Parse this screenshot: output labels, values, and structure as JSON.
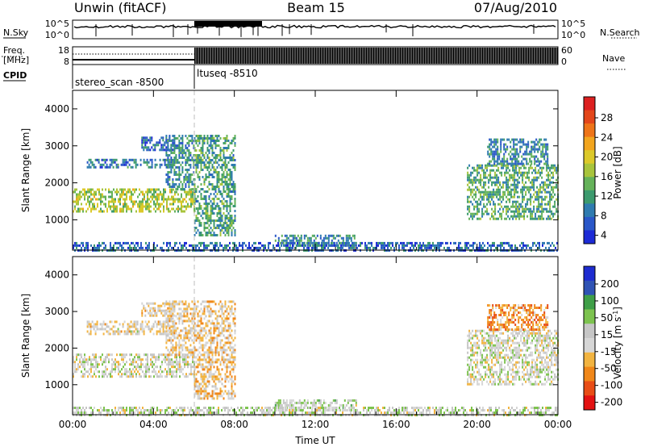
{
  "header": {
    "site": "Unwin (fitACF)",
    "beam": "Beam 15",
    "date": "07/Aug/2010"
  },
  "top_panels": {
    "nsky_label": "N.Sky",
    "nsky_ticks": [
      "10^5",
      "10^0"
    ],
    "nsearch_label": "N.Search",
    "nsearch_ticks": [
      "10^5",
      "10^0"
    ],
    "freq_label": [
      "Freq.",
      "[MHz]"
    ],
    "freq_ticks": [
      "18",
      "8"
    ],
    "nave_label": "Nave",
    "nave_ticks": [
      "60",
      "0"
    ],
    "cpid_label": "CPID",
    "cpid_segments": [
      {
        "name": "stereo_scan -8500",
        "start": 0,
        "end": 6.05
      },
      {
        "name": "ltuseq -8510",
        "start": 6.05,
        "end": 24
      }
    ]
  },
  "colorbars": {
    "power": {
      "title": "Power [dB]",
      "ticks": [
        "28",
        "24",
        "20",
        "16",
        "12",
        "8",
        "4"
      ],
      "colors": [
        "#1d2bd6",
        "#2a57c8",
        "#2f7bb0",
        "#3c9a6e",
        "#65b25a",
        "#a8c43c",
        "#dcc92a",
        "#f2a51e",
        "#ee7418",
        "#e3461a",
        "#dc2020"
      ]
    },
    "velocity": {
      "title": "Velocity [m s-1]",
      "ticks": [
        "200",
        "100",
        "50",
        "15",
        "-15",
        "-50",
        "-100",
        "-200"
      ],
      "colors": [
        "#e31212",
        "#e84d16",
        "#f08719",
        "#f2b441",
        "#d6d6d6",
        "#c6c6c6",
        "#7dc34f",
        "#3f9f48",
        "#2f53b4",
        "#1e2cd0"
      ]
    }
  },
  "chart_data": [
    {
      "type": "heatmap",
      "title": "Power",
      "xlabel": "Time UT",
      "ylabel": "Slant Range [km]",
      "xlim": [
        0,
        24
      ],
      "ylim": [
        180,
        4500
      ],
      "x_ticks": [
        "00:00",
        "04:00",
        "08:00",
        "12:00",
        "16:00",
        "20:00",
        "00:00"
      ],
      "y_ticks": [
        "1000",
        "2000",
        "3000",
        "4000"
      ],
      "colorbar": "Power [dB]",
      "regions": [
        {
          "t0": 0.0,
          "t1": 6.0,
          "r0": 1250,
          "r1": 1850,
          "value_db": 16
        },
        {
          "t0": 0.7,
          "t1": 5.0,
          "r0": 2400,
          "r1": 2650,
          "value_db": 6
        },
        {
          "t0": 3.4,
          "t1": 5.0,
          "r0": 2900,
          "r1": 3250,
          "value_db": 5
        },
        {
          "t0": 4.6,
          "t1": 6.0,
          "r0": 1800,
          "r1": 3300,
          "value_db": 8
        },
        {
          "t0": 6.0,
          "t1": 8.0,
          "r0": 600,
          "r1": 3300,
          "value_db": 10
        },
        {
          "t0": 10.0,
          "t1": 14.0,
          "r0": 300,
          "r1": 600,
          "value_db": 8
        },
        {
          "t0": 19.5,
          "t1": 24.0,
          "r0": 1000,
          "r1": 2500,
          "value_db": 11
        },
        {
          "t0": 20.5,
          "t1": 23.5,
          "r0": 2500,
          "r1": 3200,
          "value_db": 8
        },
        {
          "t0": 0.0,
          "t1": 24.0,
          "r0": 200,
          "r1": 400,
          "value_db": 5
        }
      ]
    },
    {
      "type": "heatmap",
      "title": "Velocity",
      "xlabel": "Time UT",
      "ylabel": "Slant Range [km]",
      "xlim": [
        0,
        24
      ],
      "ylim": [
        180,
        4500
      ],
      "x_ticks": [
        "00:00",
        "04:00",
        "08:00",
        "12:00",
        "16:00",
        "20:00",
        "00:00"
      ],
      "y_ticks": [
        "1000",
        "2000",
        "3000",
        "4000"
      ],
      "colorbar": "Velocity [m s-1]",
      "regions": [
        {
          "t0": 0.0,
          "t1": 6.0,
          "r0": 1250,
          "r1": 1850,
          "value_ms": 0
        },
        {
          "t0": 0.7,
          "t1": 5.0,
          "r0": 2400,
          "r1": 2750,
          "value_ms": -30
        },
        {
          "t0": 3.4,
          "t1": 5.0,
          "r0": 2900,
          "r1": 3250,
          "value_ms": -40
        },
        {
          "t0": 4.6,
          "t1": 6.0,
          "r0": 1800,
          "r1": 3300,
          "value_ms": -40
        },
        {
          "t0": 6.0,
          "t1": 8.0,
          "r0": 600,
          "r1": 3300,
          "value_ms": -60
        },
        {
          "t0": 10.0,
          "t1": 14.0,
          "r0": 300,
          "r1": 600,
          "value_ms": 30
        },
        {
          "t0": 19.5,
          "t1": 24.0,
          "r0": 1000,
          "r1": 2500,
          "value_ms": 5
        },
        {
          "t0": 20.5,
          "t1": 23.5,
          "r0": 2500,
          "r1": 3200,
          "value_ms": -120
        },
        {
          "t0": 0.0,
          "t1": 24.0,
          "r0": 200,
          "r1": 400,
          "value_ms": 20
        }
      ]
    }
  ]
}
